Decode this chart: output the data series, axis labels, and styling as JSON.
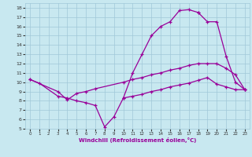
{
  "xlabel": "Windchill (Refroidissement éolien,°C)",
  "bg_color": "#c8e8f0",
  "grid_color": "#a0c8d8",
  "line_color": "#990099",
  "marker": "+",
  "xlim": [
    -0.5,
    23.5
  ],
  "ylim": [
    5,
    18.5
  ],
  "xticks": [
    0,
    1,
    2,
    3,
    4,
    5,
    6,
    7,
    8,
    9,
    10,
    11,
    12,
    13,
    14,
    15,
    16,
    17,
    18,
    19,
    20,
    21,
    22,
    23
  ],
  "yticks": [
    5,
    6,
    7,
    8,
    9,
    10,
    11,
    12,
    13,
    14,
    15,
    16,
    17,
    18
  ],
  "curve_segments": [
    {
      "x": [
        0,
        1,
        3,
        4,
        5,
        6,
        7,
        8,
        9,
        10,
        11,
        12,
        13,
        14,
        15,
        16,
        17,
        18
      ],
      "y": [
        10.3,
        9.9,
        8.5,
        8.3,
        8.0,
        7.8,
        7.5,
        5.2,
        6.3,
        8.3,
        11.0,
        13.0,
        15.0,
        16.0,
        16.5,
        17.7,
        17.8,
        17.5
      ]
    },
    {
      "x": [
        0,
        3,
        4,
        5,
        6,
        7,
        10,
        11,
        12,
        13,
        14,
        15,
        16,
        17,
        18,
        19,
        20,
        21,
        22,
        23
      ],
      "y": [
        10.3,
        9.0,
        8.1,
        8.8,
        9.0,
        9.3,
        10.0,
        10.3,
        10.5,
        10.8,
        11.0,
        11.3,
        11.5,
        11.8,
        12.0,
        12.0,
        12.0,
        11.5,
        10.8,
        9.2
      ]
    },
    {
      "x": [
        10,
        11,
        12,
        13,
        14,
        15,
        16,
        17,
        18,
        19,
        20,
        21,
        22,
        23
      ],
      "y": [
        8.3,
        8.5,
        8.7,
        9.0,
        9.2,
        9.5,
        9.7,
        9.9,
        10.2,
        10.5,
        9.8,
        9.5,
        9.2,
        9.2
      ]
    },
    {
      "x": [
        18,
        19,
        20,
        21,
        22,
        23
      ],
      "y": [
        17.5,
        16.5,
        16.5,
        12.8,
        10.0,
        9.2
      ]
    }
  ]
}
